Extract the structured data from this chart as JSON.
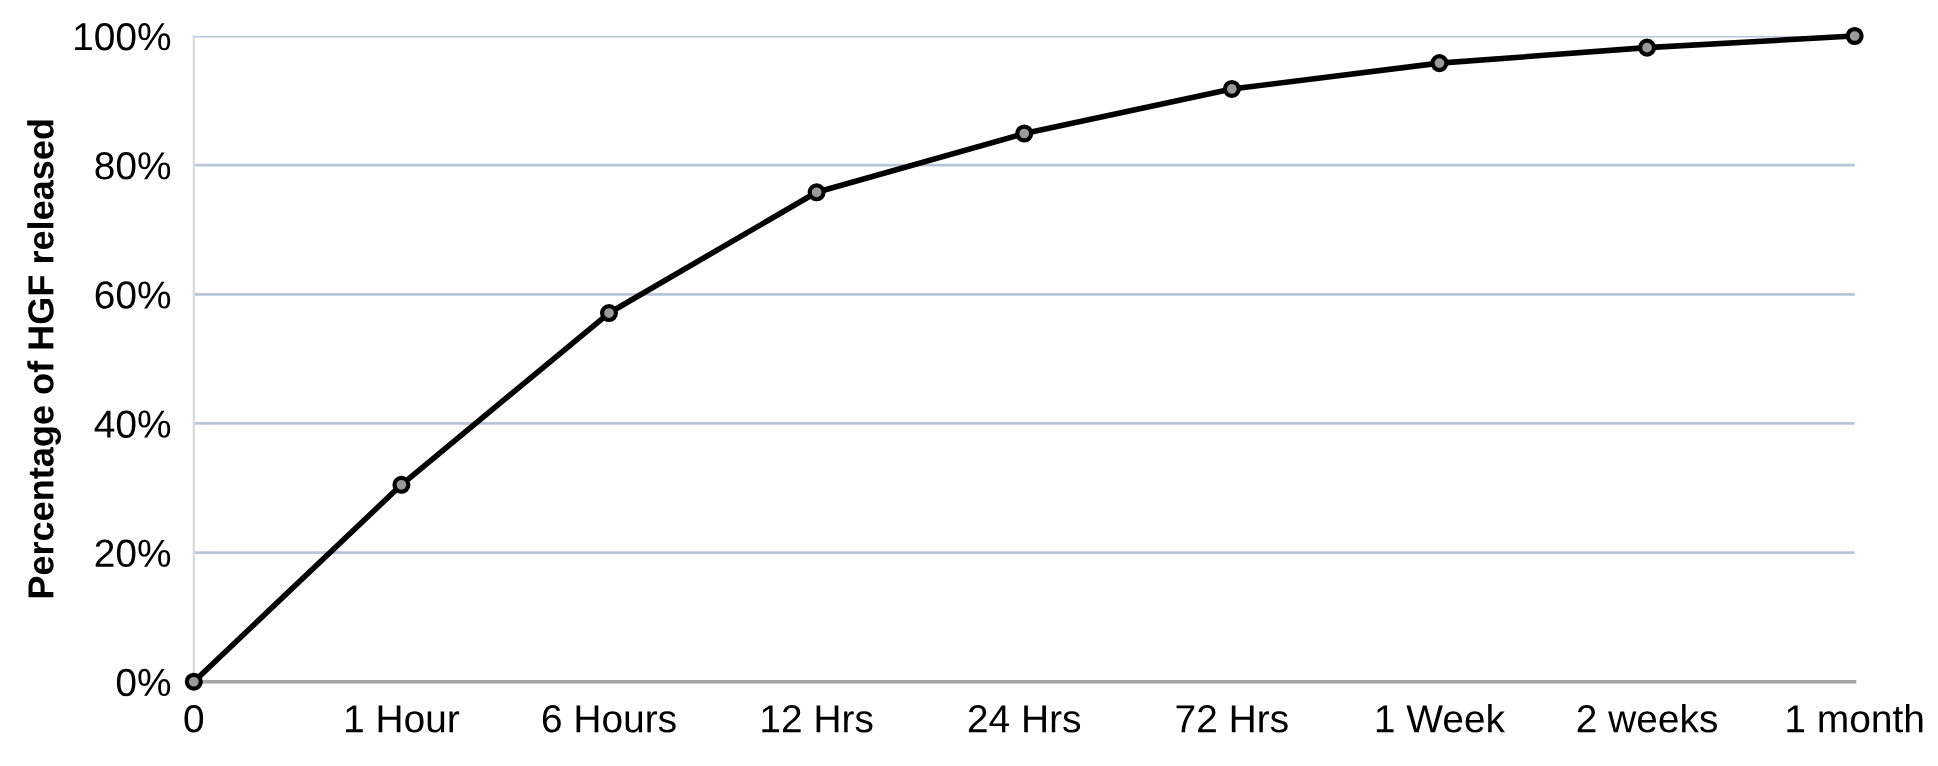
{
  "chart_data": {
    "type": "line",
    "ylabel": "Percentage of HGF released",
    "categories": [
      "0",
      "1 Hour",
      "6 Hours",
      "12 Hrs",
      "24 Hrs",
      "72 Hrs",
      "1 Week",
      "2 weeks",
      "1 month"
    ],
    "series": [
      {
        "color": "#000000",
        "values": [
          0,
          30.5,
          57.1,
          75.8,
          84.9,
          91.8,
          95.8,
          98.2,
          100
        ]
      }
    ],
    "ylim": [
      0,
      100
    ],
    "yticks": [
      {
        "value": 0,
        "label": "0%"
      },
      {
        "value": 20,
        "label": "20%"
      },
      {
        "value": 40,
        "label": "40%"
      },
      {
        "value": 60,
        "label": "60%"
      },
      {
        "value": 80,
        "label": "80%"
      },
      {
        "value": 100,
        "label": "100%"
      }
    ],
    "grid": "y",
    "marker": "circle",
    "line_style": "solid"
  }
}
